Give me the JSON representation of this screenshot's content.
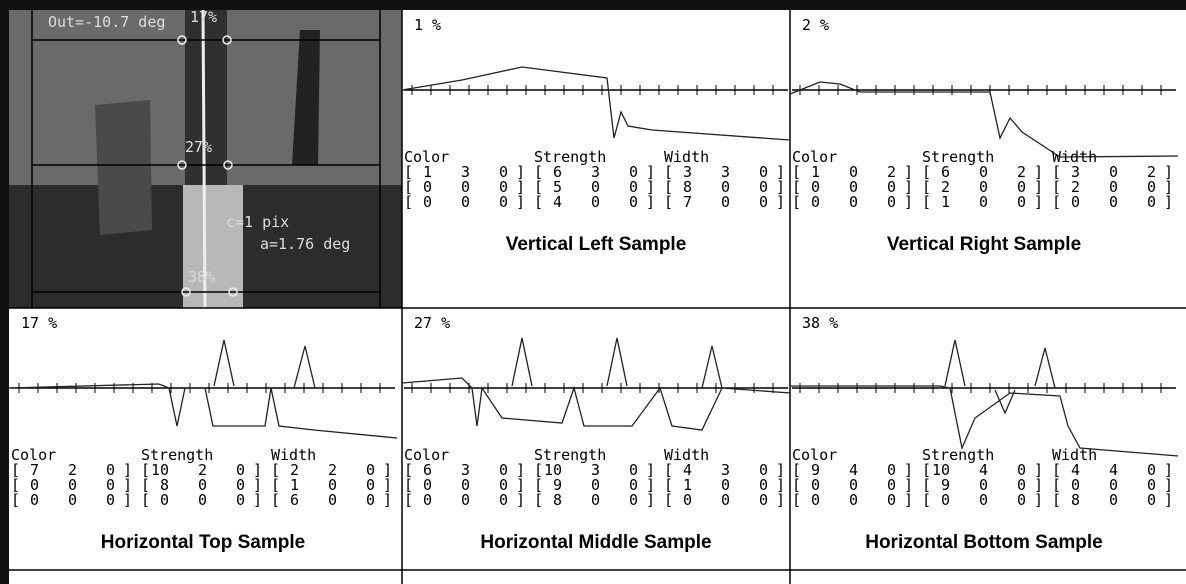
{
  "image_panel": {
    "readout": "Out=-10.7 deg",
    "marks": [
      "17%",
      "27%",
      "38%"
    ],
    "offset": "c=1 pix",
    "angle": "a=1.76 deg"
  },
  "samples": [
    {
      "percent": "1 %",
      "title": "Vertical Left Sample",
      "headers": [
        "Color",
        "Strength",
        "Width"
      ],
      "matrices": [
        [
          [
            1,
            3,
            0
          ],
          [
            0,
            0,
            0
          ],
          [
            0,
            0,
            0
          ]
        ],
        [
          [
            6,
            3,
            0
          ],
          [
            5,
            0,
            0
          ],
          [
            4,
            0,
            0
          ]
        ],
        [
          [
            3,
            3,
            0
          ],
          [
            8,
            0,
            0
          ],
          [
            7,
            0,
            0
          ]
        ]
      ]
    },
    {
      "percent": "2 %",
      "title": "Vertical Right Sample",
      "headers": [
        "Color",
        "Strength",
        "Width"
      ],
      "matrices": [
        [
          [
            1,
            0,
            2
          ],
          [
            0,
            0,
            0
          ],
          [
            0,
            0,
            0
          ]
        ],
        [
          [
            6,
            0,
            2
          ],
          [
            2,
            0,
            0
          ],
          [
            1,
            0,
            0
          ]
        ],
        [
          [
            3,
            0,
            2
          ],
          [
            2,
            0,
            0
          ],
          [
            0,
            0,
            0
          ]
        ]
      ]
    },
    {
      "percent": "17 %",
      "title": "Horizontal Top Sample",
      "headers": [
        "Color",
        "Strength",
        "Width"
      ],
      "matrices": [
        [
          [
            7,
            2,
            0
          ],
          [
            0,
            0,
            0
          ],
          [
            0,
            0,
            0
          ]
        ],
        [
          [
            10,
            2,
            0
          ],
          [
            8,
            0,
            0
          ],
          [
            0,
            0,
            0
          ]
        ],
        [
          [
            2,
            2,
            0
          ],
          [
            1,
            0,
            0
          ],
          [
            6,
            0,
            0
          ]
        ]
      ]
    },
    {
      "percent": "27 %",
      "title": "Horizontal Middle Sample",
      "headers": [
        "Color",
        "Strength",
        "Width"
      ],
      "matrices": [
        [
          [
            6,
            3,
            0
          ],
          [
            0,
            0,
            0
          ],
          [
            0,
            0,
            0
          ]
        ],
        [
          [
            10,
            3,
            0
          ],
          [
            9,
            0,
            0
          ],
          [
            8,
            0,
            0
          ]
        ],
        [
          [
            4,
            3,
            0
          ],
          [
            1,
            0,
            0
          ],
          [
            0,
            0,
            0
          ]
        ]
      ]
    },
    {
      "percent": "38 %",
      "title": "Horizontal Bottom Sample",
      "headers": [
        "Color",
        "Strength",
        "Width"
      ],
      "matrices": [
        [
          [
            9,
            4,
            0
          ],
          [
            0,
            0,
            0
          ],
          [
            0,
            0,
            0
          ]
        ],
        [
          [
            10,
            4,
            0
          ],
          [
            9,
            0,
            0
          ],
          [
            0,
            0,
            0
          ]
        ],
        [
          [
            4,
            4,
            0
          ],
          [
            0,
            0,
            0
          ],
          [
            8,
            0,
            0
          ]
        ]
      ]
    }
  ]
}
